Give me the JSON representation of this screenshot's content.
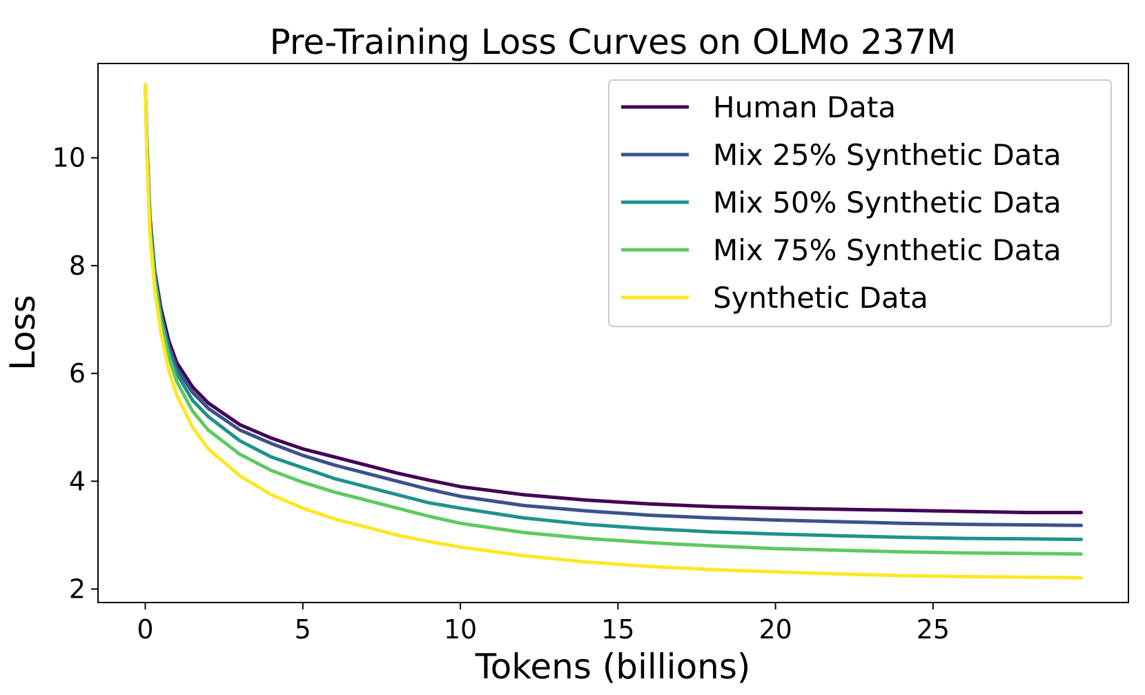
{
  "chart_data": {
    "type": "line",
    "title": "Pre-Training Loss Curves on OLMo 237M",
    "xlabel": "Tokens (billions)",
    "ylabel": "Loss",
    "xlim": [
      -1.5,
      31.2
    ],
    "ylim": [
      1.75,
      11.75
    ],
    "xticks": [
      0,
      5,
      10,
      15,
      20,
      25
    ],
    "yticks": [
      2,
      4,
      6,
      8,
      10
    ],
    "legend_position": "top-right",
    "grid": false,
    "series": [
      {
        "name": "Human Data",
        "color": "#440154",
        "x": [
          0,
          0.05,
          0.15,
          0.3,
          0.5,
          0.75,
          1,
          1.5,
          2,
          3,
          4,
          5,
          6,
          7,
          8,
          9,
          10,
          12,
          14,
          16,
          18,
          20,
          22,
          24,
          26,
          28,
          29.7
        ],
        "y": [
          11.35,
          10.3,
          8.9,
          7.9,
          7.2,
          6.6,
          6.2,
          5.75,
          5.45,
          5.05,
          4.8,
          4.6,
          4.45,
          4.3,
          4.15,
          4.02,
          3.9,
          3.75,
          3.65,
          3.58,
          3.53,
          3.5,
          3.48,
          3.46,
          3.44,
          3.42,
          3.42
        ]
      },
      {
        "name": "Mix 25% Synthetic Data",
        "color": "#3b528b",
        "x": [
          0,
          0.05,
          0.15,
          0.3,
          0.5,
          0.75,
          1,
          1.5,
          2,
          3,
          4,
          5,
          6,
          7,
          8,
          9,
          10,
          12,
          14,
          16,
          18,
          20,
          22,
          24,
          26,
          28,
          29.7
        ],
        "y": [
          11.35,
          10.25,
          8.85,
          7.85,
          7.1,
          6.5,
          6.1,
          5.65,
          5.35,
          4.95,
          4.7,
          4.48,
          4.3,
          4.15,
          4.0,
          3.85,
          3.72,
          3.55,
          3.45,
          3.37,
          3.32,
          3.28,
          3.25,
          3.22,
          3.2,
          3.19,
          3.18
        ]
      },
      {
        "name": "Mix 50% Synthetic Data",
        "color": "#21918c",
        "x": [
          0,
          0.05,
          0.15,
          0.3,
          0.5,
          0.75,
          1,
          1.5,
          2,
          3,
          4,
          5,
          6,
          7,
          8,
          9,
          10,
          12,
          14,
          16,
          18,
          20,
          22,
          24,
          26,
          28,
          29.7
        ],
        "y": [
          11.35,
          10.2,
          8.8,
          7.8,
          7.05,
          6.4,
          6.0,
          5.5,
          5.2,
          4.75,
          4.45,
          4.25,
          4.05,
          3.9,
          3.75,
          3.6,
          3.5,
          3.32,
          3.2,
          3.12,
          3.06,
          3.02,
          2.99,
          2.96,
          2.94,
          2.93,
          2.92
        ]
      },
      {
        "name": "Mix 75% Synthetic Data",
        "color": "#5ec962",
        "x": [
          0,
          0.05,
          0.15,
          0.3,
          0.5,
          0.75,
          1,
          1.5,
          2,
          3,
          4,
          5,
          6,
          7,
          8,
          9,
          10,
          12,
          14,
          16,
          18,
          20,
          22,
          24,
          26,
          28,
          29.7
        ],
        "y": [
          11.35,
          10.15,
          8.7,
          7.7,
          6.95,
          6.3,
          5.85,
          5.3,
          4.95,
          4.5,
          4.2,
          3.98,
          3.8,
          3.65,
          3.5,
          3.35,
          3.22,
          3.05,
          2.94,
          2.86,
          2.8,
          2.75,
          2.72,
          2.69,
          2.67,
          2.66,
          2.65
        ]
      },
      {
        "name": "Synthetic Data",
        "color": "#fde725",
        "x": [
          0,
          0.05,
          0.15,
          0.3,
          0.5,
          0.75,
          1,
          1.5,
          2,
          3,
          4,
          5,
          6,
          7,
          8,
          9,
          10,
          12,
          14,
          16,
          18,
          20,
          22,
          24,
          26,
          28,
          29.7
        ],
        "y": [
          11.35,
          10.05,
          8.55,
          7.55,
          6.75,
          6.05,
          5.6,
          5.0,
          4.6,
          4.1,
          3.75,
          3.5,
          3.3,
          3.15,
          3.0,
          2.88,
          2.78,
          2.62,
          2.5,
          2.42,
          2.36,
          2.32,
          2.28,
          2.25,
          2.23,
          2.22,
          2.21
        ]
      }
    ]
  }
}
